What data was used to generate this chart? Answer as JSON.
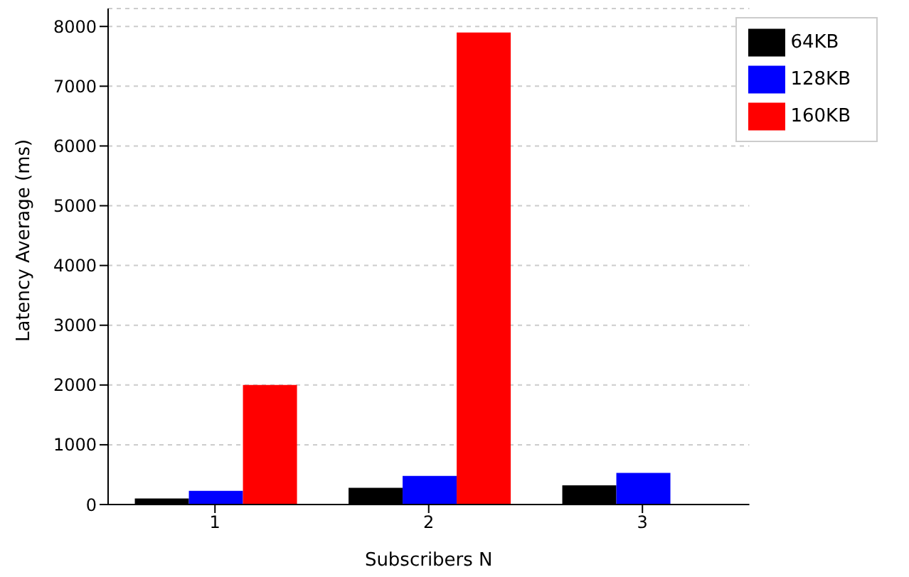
{
  "chart_data": {
    "type": "bar",
    "categories": [
      "1",
      "2",
      "3"
    ],
    "xlabel": "Subscribers N",
    "ylabel": "Latency Average (ms)",
    "series": [
      {
        "name": "64KB",
        "color": "#000000",
        "values": [
          100,
          280,
          320
        ]
      },
      {
        "name": "128KB",
        "color": "#0000ff",
        "values": [
          230,
          480,
          530
        ]
      },
      {
        "name": "160KB",
        "color": "#ff0000",
        "values": [
          2000,
          7900,
          null
        ]
      }
    ],
    "ylim": [
      0,
      8300
    ],
    "yticks": [
      0,
      1000,
      2000,
      3000,
      4000,
      5000,
      6000,
      7000,
      8000
    ],
    "grid": "y",
    "legend": "top right"
  }
}
